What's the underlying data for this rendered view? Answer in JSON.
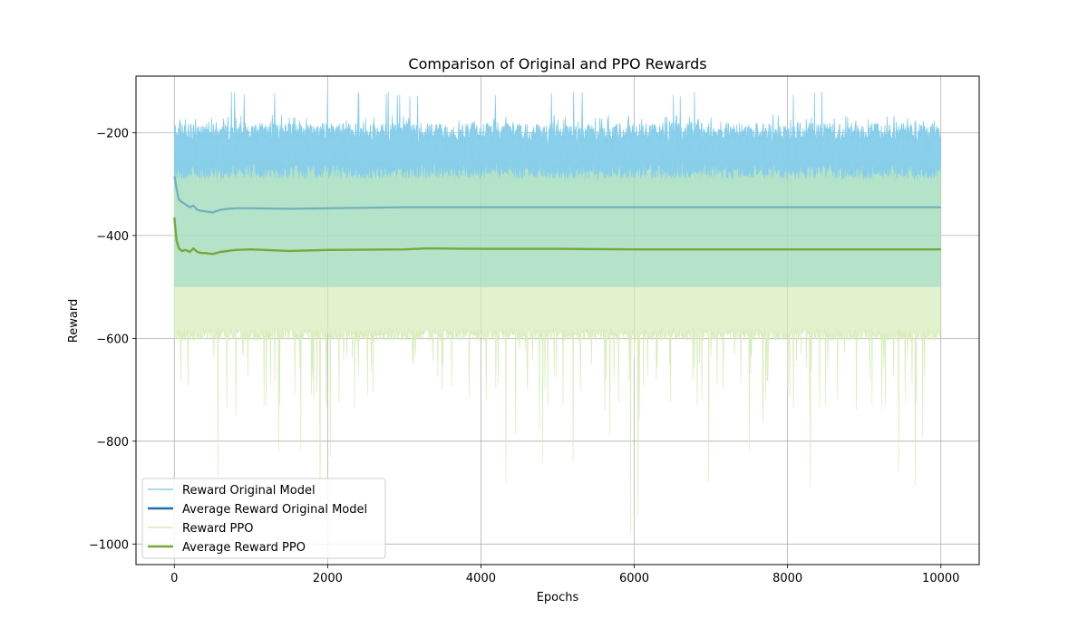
{
  "chart_data": {
    "type": "line",
    "title": "Comparison of Original and PPO Rewards",
    "xlabel": "Epochs",
    "ylabel": "Reward",
    "xlim": [
      -500,
      10500
    ],
    "ylim": [
      -1040,
      -90
    ],
    "xticks": [
      0,
      2000,
      4000,
      6000,
      8000,
      10000
    ],
    "xtick_labels": [
      "0",
      "2000",
      "4000",
      "6000",
      "8000",
      "10000"
    ],
    "yticks": [
      -1000,
      -800,
      -600,
      -400,
      -200
    ],
    "ytick_labels": [
      "−1000",
      "−800",
      "−600",
      "−400",
      "−200"
    ],
    "grid": true,
    "legend_position": "lower-left",
    "series": [
      {
        "name": "Reward Original Model",
        "color": "#87CEEB",
        "style": "noisy-band",
        "x_range": [
          0,
          10000
        ],
        "typical_high": -200,
        "max": -115,
        "band_top_min": -290,
        "low": -500,
        "note_mean": -345
      },
      {
        "name": "Average Reward Original Model",
        "color": "#1f6fad",
        "style": "line",
        "x": [
          0,
          10,
          30,
          60,
          100,
          150,
          200,
          250,
          300,
          350,
          400,
          450,
          500,
          600,
          700,
          800,
          1000,
          1500,
          2000,
          3000,
          4000,
          5000,
          6000,
          7000,
          8000,
          9000,
          10000
        ],
        "values": [
          -285,
          -290,
          -310,
          -330,
          -335,
          -340,
          -345,
          -342,
          -350,
          -352,
          -353,
          -354,
          -355,
          -350,
          -348,
          -347,
          -347,
          -348,
          -347,
          -345,
          -345,
          -345,
          -345,
          -345,
          -345,
          -345,
          -345
        ]
      },
      {
        "name": "Reward PPO",
        "color": "#d6ecb8",
        "style": "noisy-band",
        "x_range": [
          0,
          10000
        ],
        "typical_high": -230,
        "typical_low": -580,
        "band_bottom_max": -500,
        "min": -980
      },
      {
        "name": "Average Reward PPO",
        "color": "#77a83a",
        "style": "line",
        "x": [
          0,
          10,
          30,
          60,
          100,
          150,
          200,
          250,
          300,
          350,
          400,
          450,
          500,
          600,
          700,
          800,
          1000,
          1500,
          2000,
          3000,
          3300,
          4000,
          5000,
          6000,
          7000,
          8000,
          9000,
          10000
        ],
        "values": [
          -365,
          -380,
          -410,
          -425,
          -430,
          -428,
          -432,
          -425,
          -432,
          -434,
          -434,
          -435,
          -436,
          -432,
          -430,
          -428,
          -427,
          -430,
          -428,
          -427,
          -425,
          -426,
          -426,
          -427,
          -427,
          -427,
          -427,
          -427
        ]
      }
    ]
  }
}
